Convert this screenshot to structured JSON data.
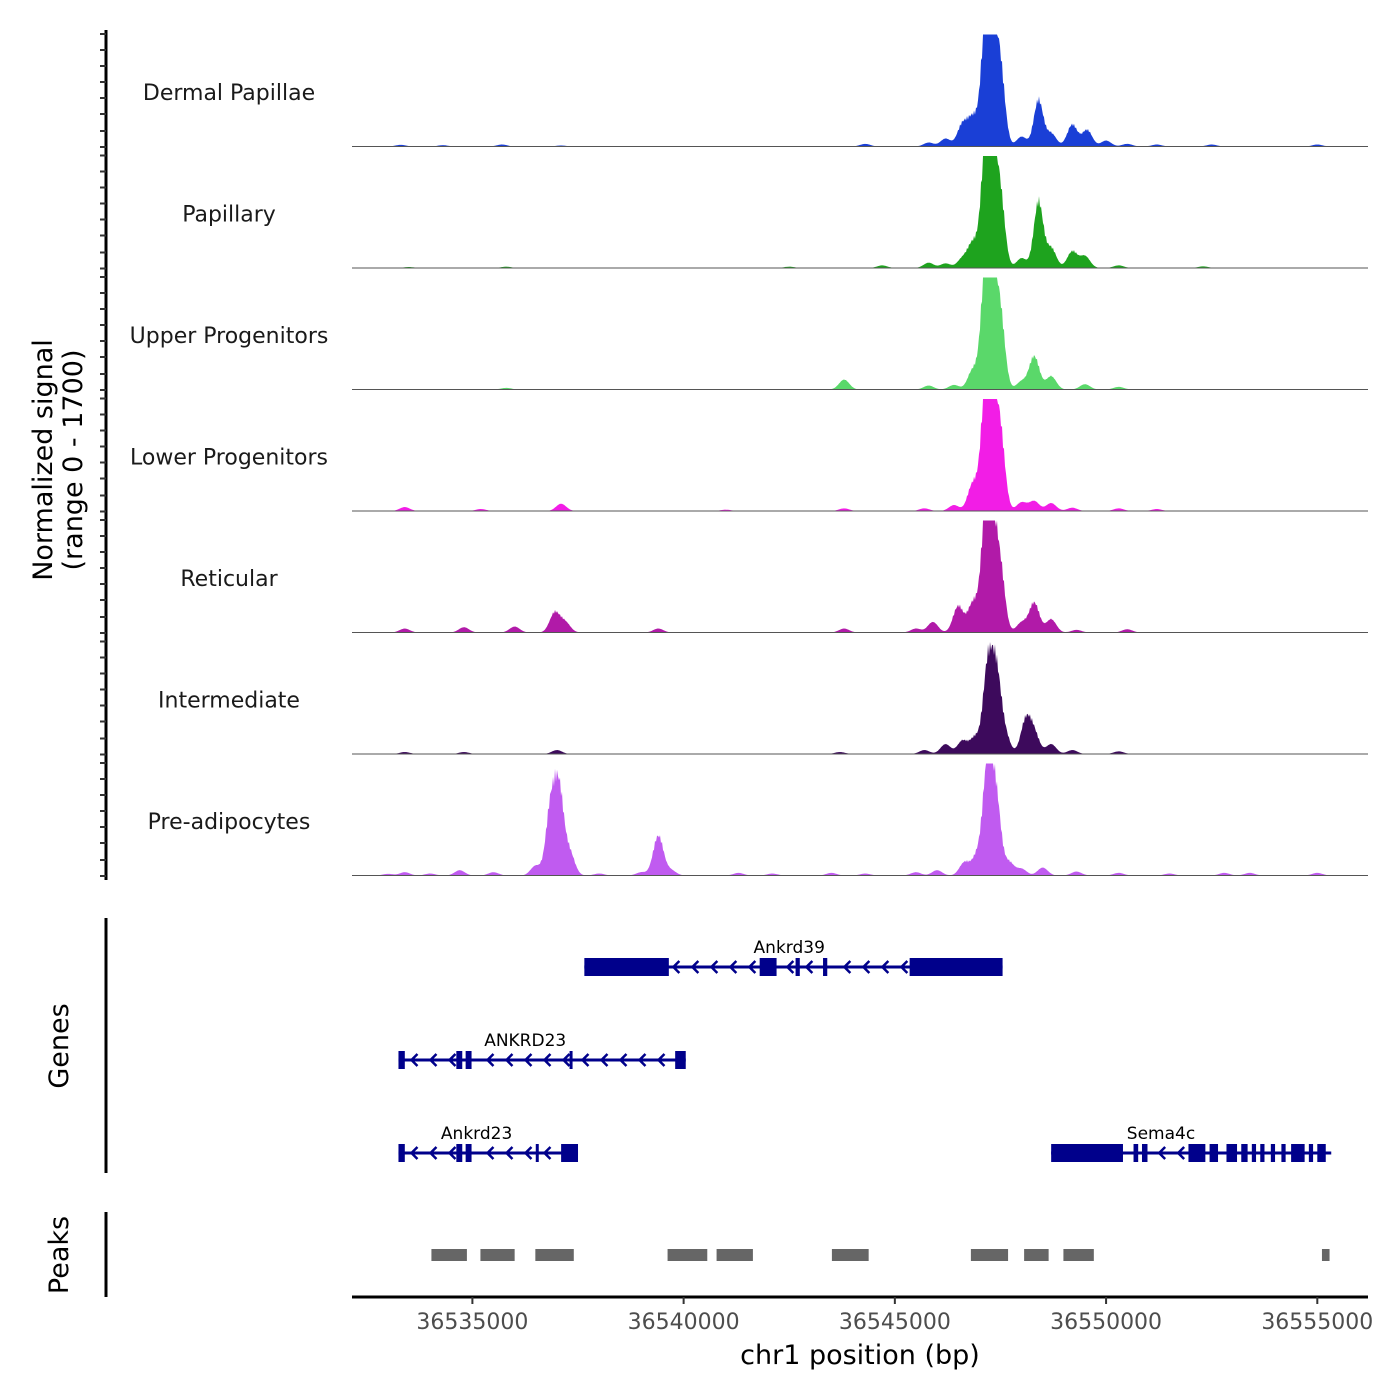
{
  "chart_data": {
    "type": "area",
    "title": "",
    "xlabel": "chr1 position (bp)",
    "ylabel": "Normalized signal\n(range 0 - 1700)",
    "ylabel_lines": [
      "Normalized signal",
      "(range 0 - 1700)"
    ],
    "ylim": [
      0,
      1700
    ],
    "xlim": [
      36532150,
      36556200
    ],
    "x_ticks": [
      36535000,
      36540000,
      36545000,
      36550000,
      36555000
    ],
    "x_tick_labels": [
      "36535000",
      "36540000",
      "36545000",
      "36550000",
      "36555000"
    ],
    "grid": false,
    "legend": "none",
    "tracks": [
      {
        "name": "Dermal Papillae",
        "color": "#1a3fd6",
        "peaks": [
          [
            36533300,
            25
          ],
          [
            36534300,
            20
          ],
          [
            36535700,
            30
          ],
          [
            36537100,
            15
          ],
          [
            36544300,
            40
          ],
          [
            36545800,
            60
          ],
          [
            36546200,
            120
          ],
          [
            36546600,
            330
          ],
          [
            36546850,
            420
          ],
          [
            36547150,
            1650
          ],
          [
            36547300,
            1680
          ],
          [
            36547500,
            1100
          ],
          [
            36548000,
            150
          ],
          [
            36548400,
            700
          ],
          [
            36548700,
            200
          ],
          [
            36549200,
            330
          ],
          [
            36549550,
            250
          ],
          [
            36550000,
            90
          ],
          [
            36550500,
            40
          ],
          [
            36551200,
            30
          ],
          [
            36552500,
            30
          ],
          [
            36555000,
            30
          ]
        ]
      },
      {
        "name": "Papillary",
        "color": "#1ea31e",
        "peaks": [
          [
            36533500,
            15
          ],
          [
            36535800,
            20
          ],
          [
            36542500,
            20
          ],
          [
            36544700,
            40
          ],
          [
            36545800,
            80
          ],
          [
            36546200,
            70
          ],
          [
            36546600,
            140
          ],
          [
            36546850,
            380
          ],
          [
            36547150,
            1650
          ],
          [
            36547300,
            1680
          ],
          [
            36547500,
            1000
          ],
          [
            36548000,
            150
          ],
          [
            36548400,
            1000
          ],
          [
            36548700,
            300
          ],
          [
            36549200,
            250
          ],
          [
            36549500,
            180
          ],
          [
            36550300,
            40
          ],
          [
            36552300,
            25
          ]
        ]
      },
      {
        "name": "Upper Progenitors",
        "color": "#5ad86a",
        "peaks": [
          [
            36535800,
            25
          ],
          [
            36543800,
            150
          ],
          [
            36545800,
            60
          ],
          [
            36546400,
            70
          ],
          [
            36546850,
            300
          ],
          [
            36547150,
            1680
          ],
          [
            36547300,
            1600
          ],
          [
            36547500,
            1050
          ],
          [
            36548000,
            120
          ],
          [
            36548300,
            500
          ],
          [
            36548700,
            200
          ],
          [
            36549500,
            80
          ],
          [
            36550300,
            40
          ]
        ]
      },
      {
        "name": "Lower Progenitors",
        "color": "#f21de6",
        "peaks": [
          [
            36533400,
            60
          ],
          [
            36535200,
            30
          ],
          [
            36537100,
            110
          ],
          [
            36541000,
            20
          ],
          [
            36543800,
            40
          ],
          [
            36545700,
            40
          ],
          [
            36546400,
            90
          ],
          [
            36546850,
            420
          ],
          [
            36547150,
            1680
          ],
          [
            36547300,
            1600
          ],
          [
            36547500,
            1100
          ],
          [
            36548000,
            130
          ],
          [
            36548300,
            150
          ],
          [
            36548700,
            120
          ],
          [
            36549200,
            50
          ],
          [
            36550300,
            40
          ],
          [
            36551200,
            30
          ]
        ]
      },
      {
        "name": "Reticular",
        "color": "#b11aa8",
        "peaks": [
          [
            36533400,
            60
          ],
          [
            36534800,
            80
          ],
          [
            36536000,
            90
          ],
          [
            36536950,
            300
          ],
          [
            36537200,
            150
          ],
          [
            36539400,
            60
          ],
          [
            36543800,
            60
          ],
          [
            36545500,
            60
          ],
          [
            36545900,
            160
          ],
          [
            36546500,
            400
          ],
          [
            36546850,
            450
          ],
          [
            36547150,
            1600
          ],
          [
            36547300,
            1500
          ],
          [
            36547500,
            900
          ],
          [
            36548000,
            150
          ],
          [
            36548300,
            450
          ],
          [
            36548700,
            200
          ],
          [
            36549300,
            40
          ],
          [
            36550500,
            50
          ]
        ]
      },
      {
        "name": "Intermediate",
        "color": "#3d0a5c",
        "peaks": [
          [
            36533400,
            30
          ],
          [
            36534800,
            30
          ],
          [
            36537000,
            60
          ],
          [
            36543700,
            30
          ],
          [
            36545700,
            60
          ],
          [
            36546200,
            150
          ],
          [
            36546600,
            200
          ],
          [
            36546900,
            250
          ],
          [
            36547200,
            1300
          ],
          [
            36547400,
            1150
          ],
          [
            36547600,
            300
          ],
          [
            36548100,
            500
          ],
          [
            36548300,
            300
          ],
          [
            36548700,
            150
          ],
          [
            36549200,
            60
          ],
          [
            36550300,
            40
          ]
        ]
      },
      {
        "name": "Pre-adipocytes",
        "color": "#c05bf0",
        "peaks": [
          [
            36533000,
            25
          ],
          [
            36533400,
            50
          ],
          [
            36534000,
            30
          ],
          [
            36534700,
            80
          ],
          [
            36535500,
            50
          ],
          [
            36536500,
            150
          ],
          [
            36536850,
            1000
          ],
          [
            36537050,
            1250
          ],
          [
            36537300,
            350
          ],
          [
            36538000,
            30
          ],
          [
            36539000,
            50
          ],
          [
            36539400,
            600
          ],
          [
            36539700,
            80
          ],
          [
            36541300,
            40
          ],
          [
            36542100,
            30
          ],
          [
            36543500,
            40
          ],
          [
            36544300,
            30
          ],
          [
            36545500,
            50
          ],
          [
            36546000,
            80
          ],
          [
            36546650,
            200
          ],
          [
            36546950,
            300
          ],
          [
            36547200,
            1700
          ],
          [
            36547400,
            1100
          ],
          [
            36547700,
            200
          ],
          [
            36548000,
            100
          ],
          [
            36548500,
            120
          ],
          [
            36549300,
            60
          ],
          [
            36550300,
            40
          ],
          [
            36551500,
            30
          ],
          [
            36552800,
            40
          ],
          [
            36553400,
            40
          ],
          [
            36555000,
            40
          ]
        ]
      }
    ],
    "genes": {
      "label": "Genes",
      "color": "#00008b",
      "items": [
        {
          "name": "Ankrd39",
          "row": 0,
          "start": 36537650,
          "end": 36547550,
          "strand": "-",
          "exons": [
            [
              36537650,
              36539650
            ],
            [
              36541800,
              36542200
            ],
            [
              36542650,
              36542750
            ],
            [
              36543300,
              36543400
            ],
            [
              36545350,
              36547550
            ]
          ]
        },
        {
          "name": "ANKRD23",
          "row": 1,
          "start": 36533250,
          "end": 36540050,
          "strand": "-",
          "exons": [
            [
              36533250,
              36533400
            ],
            [
              36534620,
              36534760
            ],
            [
              36534840,
              36534980
            ],
            [
              36537300,
              36537360
            ],
            [
              36539800,
              36540050
            ]
          ]
        },
        {
          "name": "Ankrd23",
          "row": 2,
          "start": 36533250,
          "end": 36537500,
          "strand": "-",
          "exons": [
            [
              36533250,
              36533400
            ],
            [
              36534620,
              36534760
            ],
            [
              36534840,
              36534980
            ],
            [
              36536500,
              36536560
            ],
            [
              36537100,
              36537500
            ]
          ]
        },
        {
          "name": "Sema4c",
          "row": 2,
          "start": 36548700,
          "end": 36555330,
          "strand": "-",
          "exons": [
            [
              36548700,
              36550400
            ],
            [
              36550650,
              36550760
            ],
            [
              36550850,
              36550980
            ],
            [
              36551950,
              36552350
            ],
            [
              36552450,
              36552650
            ],
            [
              36552850,
              36553100
            ],
            [
              36553200,
              36553350
            ],
            [
              36553450,
              36553550
            ],
            [
              36553650,
              36553750
            ],
            [
              36553900,
              36554000
            ],
            [
              36554150,
              36554250
            ],
            [
              36554380,
              36554700
            ],
            [
              36554800,
              36554900
            ],
            [
              36555000,
              36555200
            ]
          ]
        }
      ]
    },
    "peaks": {
      "label": "Peaks",
      "color": "#666666",
      "regions": [
        [
          36534030,
          36534870
        ],
        [
          36535190,
          36536000
        ],
        [
          36536490,
          36537400
        ],
        [
          36539620,
          36540560
        ],
        [
          36540780,
          36541640
        ],
        [
          36543510,
          36544380
        ],
        [
          36546800,
          36547680
        ],
        [
          36548060,
          36548640
        ],
        [
          36548990,
          36549710
        ],
        [
          36555110,
          36555290
        ]
      ]
    }
  }
}
